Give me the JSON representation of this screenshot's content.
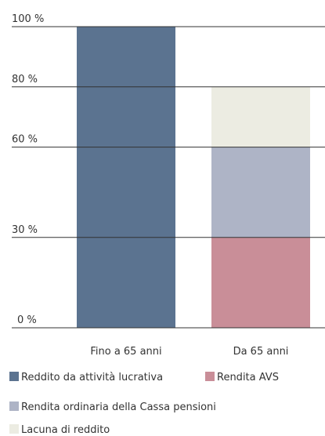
{
  "chart_data": {
    "type": "stacked_bar",
    "categories": [
      "Fino a 65 anni",
      "Da 65 anni"
    ],
    "series": [
      {
        "name": "Reddito da attività lucrativa",
        "color": "#5b7390",
        "values": [
          100,
          null
        ]
      },
      {
        "name": "Rendita AVS",
        "color": "#c98e98",
        "values": [
          null,
          30
        ]
      },
      {
        "name": "Rendita ordinaria della Cassa pensioni",
        "color": "#aeb4c6",
        "values": [
          null,
          30
        ]
      },
      {
        "name": "Lacuna di reddito",
        "color": "#ecece2",
        "values": [
          null,
          20
        ]
      }
    ],
    "ylim": [
      0,
      100
    ],
    "yticks": [
      {
        "value": 0,
        "label": "0 %"
      },
      {
        "value": 30,
        "label": "30 %"
      },
      {
        "value": 60,
        "label": "60 %"
      },
      {
        "value": 80,
        "label": "80 %"
      },
      {
        "value": 100,
        "label": "100 %"
      }
    ],
    "grid": true
  }
}
